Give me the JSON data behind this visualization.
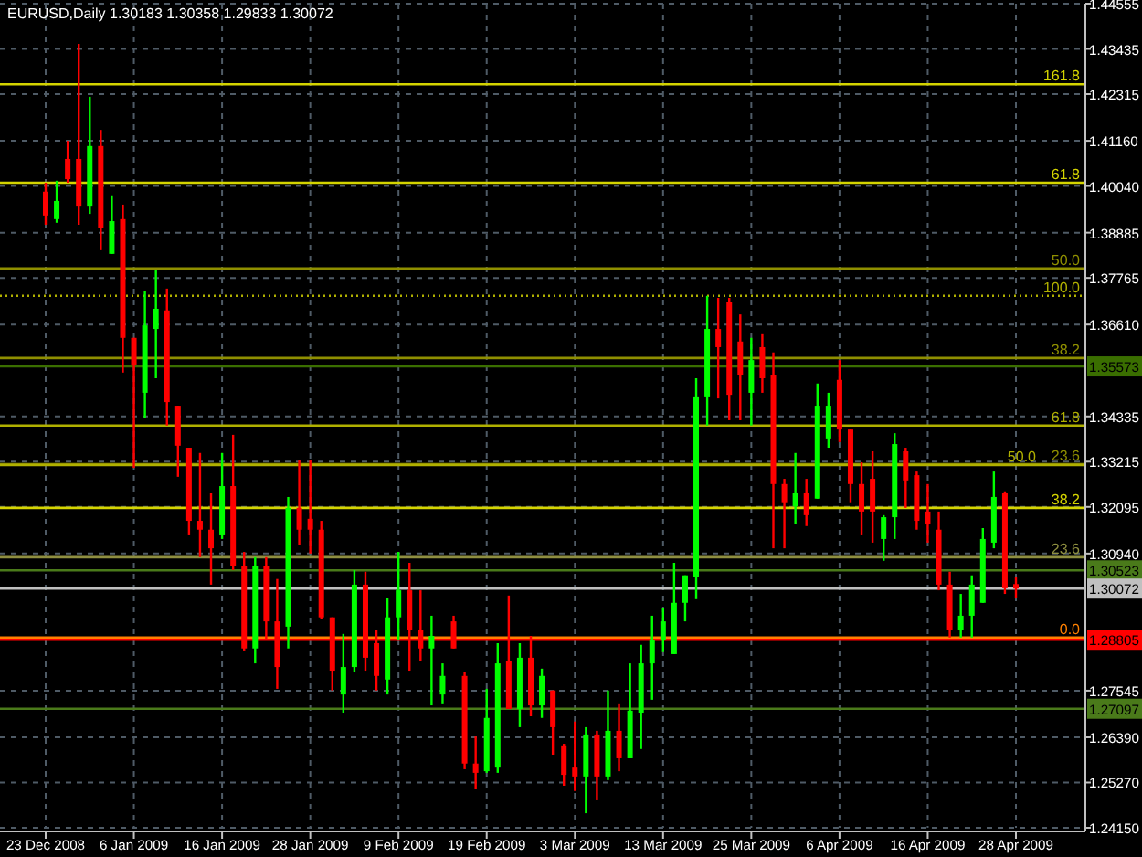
{
  "chart_data": {
    "type": "candlestick",
    "title": "EURUSD,Daily 1.30183 1.30358 1.29833 1.30072",
    "categories": [
      "23 Dec 2008",
      null,
      null,
      null,
      null,
      null,
      null,
      null,
      "6 Jan 2009",
      null,
      null,
      null,
      null,
      null,
      null,
      null,
      "16 Jan 2009",
      null,
      null,
      null,
      null,
      null,
      null,
      null,
      "28 Jan 2009",
      null,
      null,
      null,
      null,
      null,
      null,
      null,
      "9 Feb 2009",
      null,
      null,
      null,
      null,
      null,
      null,
      null,
      "19 Feb 2009",
      null,
      null,
      null,
      null,
      null,
      null,
      null,
      "3 Mar 2009",
      null,
      null,
      null,
      null,
      null,
      null,
      null,
      "13 Mar 2009",
      null,
      null,
      null,
      null,
      null,
      null,
      null,
      "25 Mar 2009",
      null,
      null,
      null,
      null,
      null,
      null,
      null,
      "6 Apr 2009",
      null,
      null,
      null,
      null,
      null,
      null,
      null,
      "16 Apr 2009",
      null,
      null,
      null,
      null,
      null,
      null,
      null,
      "28 Apr 2009"
    ],
    "ohlc": [
      [
        1.399,
        1.4012,
        1.3908,
        1.3931
      ],
      [
        1.3922,
        1.4017,
        1.3913,
        1.3967
      ],
      [
        1.4071,
        1.4116,
        1.4012,
        1.4021
      ],
      [
        1.4071,
        1.4356,
        1.3908,
        1.3953
      ],
      [
        1.3953,
        1.4225,
        1.3935,
        1.4103
      ],
      [
        1.4103,
        1.4143,
        1.3845,
        1.3899
      ],
      [
        1.3836,
        1.3981,
        1.3836,
        1.3917
      ],
      [
        1.3922,
        1.3958,
        1.3542,
        1.3628
      ],
      [
        1.3628,
        1.3628,
        1.3306,
        1.356
      ],
      [
        1.3492,
        1.3745,
        1.3429,
        1.3659
      ],
      [
        1.365,
        1.3795,
        1.3528,
        1.37
      ],
      [
        1.3696,
        1.375,
        1.3411,
        1.3469
      ],
      [
        1.346,
        1.346,
        1.3284,
        1.3361
      ],
      [
        1.3356,
        1.3356,
        1.3139,
        1.3175
      ],
      [
        1.3175,
        1.3343,
        1.3085,
        1.3153
      ],
      [
        1.3153,
        1.3243,
        1.3017,
        1.3107
      ],
      [
        1.3139,
        1.3343,
        1.313,
        1.3261
      ],
      [
        1.3261,
        1.3388,
        1.3053,
        1.3062
      ],
      [
        1.3062,
        1.3098,
        1.2854,
        1.2859
      ],
      [
        1.2859,
        1.3085,
        1.2822,
        1.3062
      ],
      [
        1.3062,
        1.3085,
        1.2881,
        1.2926
      ],
      [
        1.2926,
        1.3031,
        1.2759,
        1.2813
      ],
      [
        1.2913,
        1.3234,
        1.2859,
        1.3207
      ],
      [
        1.3207,
        1.3325,
        1.3116,
        1.3153
      ],
      [
        1.318,
        1.3325,
        1.3094,
        1.3153
      ],
      [
        1.3153,
        1.3175,
        1.2931,
        1.2936
      ],
      [
        1.2936,
        1.2936,
        1.2755,
        1.2804
      ],
      [
        1.2745,
        1.2895,
        1.27,
        1.2813
      ],
      [
        1.2813,
        1.3053,
        1.28,
        1.3017
      ],
      [
        1.3017,
        1.3049,
        1.2804,
        1.2836
      ],
      [
        1.2872,
        1.2904,
        1.2755,
        1.2791
      ],
      [
        1.2782,
        1.2985,
        1.2745,
        1.2936
      ],
      [
        1.2936,
        1.3098,
        1.2881,
        1.3003
      ],
      [
        1.3003,
        1.3071,
        1.2804,
        1.2904
      ],
      [
        1.2904,
        1.3003,
        1.2827,
        1.2859
      ],
      [
        1.2859,
        1.294,
        1.2718,
        1.289
      ],
      [
        1.2745,
        1.2822,
        1.2723,
        1.2791
      ],
      [
        1.2926,
        1.294,
        1.2859,
        1.2859
      ],
      [
        1.2791,
        1.28,
        1.256,
        1.2574
      ],
      [
        1.2574,
        1.2641,
        1.251,
        1.2551
      ],
      [
        1.2555,
        1.2759,
        1.2551,
        1.2687
      ],
      [
        1.2564,
        1.2872,
        1.2551,
        1.2822
      ],
      [
        1.2827,
        1.299,
        1.2709,
        1.2709
      ],
      [
        1.2709,
        1.2872,
        1.2664,
        1.2836
      ],
      [
        1.2836,
        1.289,
        1.2691,
        1.2718
      ],
      [
        1.2718,
        1.2809,
        1.2687,
        1.2791
      ],
      [
        1.2755,
        1.2755,
        1.2596,
        1.2664
      ],
      [
        1.2619,
        1.2623,
        1.2519,
        1.2546
      ],
      [
        1.2564,
        1.2678,
        1.2506,
        1.2542
      ],
      [
        1.2542,
        1.2664,
        1.2451,
        1.2646
      ],
      [
        1.2646,
        1.2655,
        1.2483,
        1.2542
      ],
      [
        1.2542,
        1.2755,
        1.2533,
        1.2655
      ],
      [
        1.2655,
        1.2723,
        1.2555,
        1.2587
      ],
      [
        1.2587,
        1.2822,
        1.2587,
        1.2705
      ],
      [
        1.27,
        1.2868,
        1.261,
        1.2822
      ],
      [
        1.2822,
        1.294,
        1.2732,
        1.2881
      ],
      [
        1.2881,
        1.2958,
        1.285,
        1.2926
      ],
      [
        1.2845,
        1.3071,
        1.2845,
        1.2972
      ],
      [
        1.2972,
        1.304,
        1.2926,
        1.304
      ],
      [
        1.3035,
        1.3528,
        1.2981,
        1.3483
      ],
      [
        1.3483,
        1.3732,
        1.3411,
        1.365
      ],
      [
        1.365,
        1.3727,
        1.3478,
        1.3605
      ],
      [
        1.3718,
        1.3727,
        1.3424,
        1.3487
      ],
      [
        1.3619,
        1.3686,
        1.3424,
        1.3537
      ],
      [
        1.3492,
        1.3628,
        1.3411,
        1.3573
      ],
      [
        1.3605,
        1.3637,
        1.3492,
        1.3528
      ],
      [
        1.3537,
        1.3592,
        1.3107,
        1.3266
      ],
      [
        1.3266,
        1.3279,
        1.3107,
        1.3221
      ],
      [
        1.3211,
        1.3343,
        1.3166,
        1.3243
      ],
      [
        1.3243,
        1.3279,
        1.3162,
        1.3189
      ],
      [
        1.323,
        1.3515,
        1.323,
        1.346
      ],
      [
        1.3379,
        1.3492,
        1.3356,
        1.346
      ],
      [
        1.3524,
        1.3573,
        1.337,
        1.3401
      ],
      [
        1.3401,
        1.3401,
        1.3221,
        1.3266
      ],
      [
        1.3266,
        1.332,
        1.3139,
        1.3198
      ],
      [
        1.3279,
        1.3347,
        1.3121,
        1.3198
      ],
      [
        1.313,
        1.3189,
        1.3076,
        1.3184
      ],
      [
        1.3184,
        1.3392,
        1.313,
        1.3365
      ],
      [
        1.3347,
        1.3356,
        1.3207,
        1.3275
      ],
      [
        1.3288,
        1.3297,
        1.3153,
        1.3175
      ],
      [
        1.3198,
        1.3266,
        1.3121,
        1.3166
      ],
      [
        1.3153,
        1.3198,
        1.3003,
        1.3017
      ],
      [
        1.3017,
        1.3049,
        1.2886,
        1.2904
      ],
      [
        1.2904,
        1.2994,
        1.2886,
        1.294
      ],
      [
        1.294,
        1.304,
        1.2886,
        1.3017
      ],
      [
        1.2972,
        1.3157,
        1.2972,
        1.313
      ],
      [
        1.3121,
        1.3297,
        1.3107,
        1.3234
      ],
      [
        1.3243,
        1.3248,
        1.2994,
        1.3008
      ],
      [
        1.30183,
        1.30358,
        1.29833,
        1.30072
      ]
    ],
    "colors": [
      "#ff0000",
      "#00ff00",
      "#ff0000",
      "#ff0000",
      "#00ff00",
      "#ff0000",
      "#00ff00",
      "#ff0000",
      "#ff0000",
      "#00ff00",
      "#00ff00",
      "#ff0000",
      "#ff0000",
      "#ff0000",
      "#ff0000",
      "#ff0000",
      "#00ff00",
      "#ff0000",
      "#ff0000",
      "#00ff00",
      "#ff0000",
      "#ff0000",
      "#00ff00",
      "#ff0000",
      "#ff0000",
      "#ff0000",
      "#ff0000",
      "#00ff00",
      "#00ff00",
      "#ff0000",
      "#ff0000",
      "#00ff00",
      "#00ff00",
      "#ff0000",
      "#ff0000",
      "#00ff00",
      "#00ff00",
      "#ff0000",
      "#ff0000",
      "#ff0000",
      "#00ff00",
      "#00ff00",
      "#ff0000",
      "#00ff00",
      "#ff0000",
      "#00ff00",
      "#ff0000",
      "#ff0000",
      "#ff0000",
      "#00ff00",
      "#ff0000",
      "#00ff00",
      "#ff0000",
      "#00ff00",
      "#00ff00",
      "#00ff00",
      "#00ff00",
      "#00ff00",
      "#00ff00",
      "#00ff00",
      "#00ff00",
      "#ff0000",
      "#ff0000",
      "#ff0000",
      "#00ff00",
      "#ff0000",
      "#ff0000",
      "#ff0000",
      "#00ff00",
      "#ff0000",
      "#00ff00",
      "#00ff00",
      "#ff0000",
      "#ff0000",
      "#ff0000",
      "#ff0000",
      "#00ff00",
      "#00ff00",
      "#ff0000",
      "#ff0000",
      "#ff0000",
      "#ff0000",
      "#ff0000",
      "#00ff00",
      "#00ff00",
      "#00ff00",
      "#00ff00",
      "#ff0000",
      "#ff0000"
    ],
    "ylim": [
      1.2415,
      1.44555
    ],
    "yticks": [
      1.44555,
      1.43435,
      1.42315,
      {
        "value": 1.4116,
        "label": "1.41160"
      },
      {
        "value": 1.4004,
        "label": "1.40040"
      },
      1.38885,
      1.37765,
      {
        "value": 1.3661,
        "label": "1.36610"
      },
      1.34335,
      1.33215,
      1.32095,
      {
        "value": 1.3094,
        "label": "1.30940"
      },
      1.27545,
      {
        "value": 1.2639,
        "label": "1.26390"
      },
      {
        "value": 1.2527,
        "label": "1.25270"
      },
      {
        "value": 1.2415,
        "label": "1.24150"
      }
    ],
    "grid": true,
    "annotations": [
      {
        "text": "161.8",
        "y": 1.4256
      },
      {
        "text": "61.8",
        "y": 1.4012
      },
      {
        "text": "50.0",
        "y": 1.38
      },
      {
        "text": "100.0",
        "y": 1.3732
      },
      {
        "text": "38.2",
        "y": 1.3578
      },
      {
        "text": "61.8",
        "y": 1.3411
      },
      {
        "text": "23.6",
        "y": 1.3315
      },
      {
        "text": "50.0",
        "y": 1.3313
      },
      {
        "text": "38.2",
        "y": 1.3207
      },
      {
        "text": "23.6",
        "y": 1.3085
      },
      {
        "text": "0.0",
        "y": 1.2886
      }
    ],
    "ref_lines": [
      {
        "axis": "y",
        "value": 1.4256,
        "color": "#d4d400"
      },
      {
        "axis": "y",
        "value": 1.4012,
        "color": "#d4d400"
      },
      {
        "axis": "y",
        "value": 1.38,
        "color": "#8f8f00"
      },
      {
        "axis": "y",
        "value": 1.3732,
        "color": "#b0b000",
        "line_style": "dotted"
      },
      {
        "axis": "y",
        "value": 1.3578,
        "color": "#8f8f00"
      },
      {
        "axis": "y",
        "value": 1.3411,
        "color": "#b0b000"
      },
      {
        "axis": "y",
        "value": 1.3315,
        "color": "#8f8f00"
      },
      {
        "axis": "y",
        "value": 1.3313,
        "color": "#b0b000"
      },
      {
        "axis": "y",
        "value": 1.3207,
        "color": "#d4d400"
      },
      {
        "axis": "y",
        "value": 1.3085,
        "color": "#8f8f40"
      },
      {
        "axis": "y",
        "value": 1.2886,
        "color": "#ff8000"
      },
      {
        "axis": "y",
        "value": 1.35573,
        "label": "1.35573",
        "color": "#3a6e00"
      },
      {
        "axis": "y",
        "value": 1.30523,
        "label": "1.30523",
        "color": "#4a7a1a"
      },
      {
        "axis": "y",
        "value": 1.30072,
        "label": "1.30072",
        "color": "#c0c0c0"
      },
      {
        "axis": "y",
        "value": 1.28805,
        "label": "1.28805",
        "color": "#ff0000"
      },
      {
        "axis": "y",
        "value": 1.27097,
        "label": "1.27097",
        "color": "#4a7a1a"
      }
    ]
  }
}
